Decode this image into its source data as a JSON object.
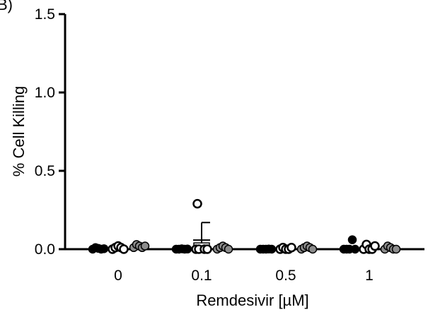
{
  "panel_label": "B)",
  "chart_data": {
    "type": "scatter",
    "title": "",
    "xlabel": "Remdesivir [µM]",
    "ylabel": "% Cell Killing",
    "ylim": [
      0,
      1.5
    ],
    "yticks": [
      "0.0",
      "0.5",
      "1.0",
      "1.5"
    ],
    "categories": [
      "0",
      "0.1",
      "0.5",
      "1"
    ],
    "grid": false,
    "legend": "none",
    "series": [
      {
        "marker": "filled-black",
        "color": "#000000",
        "fill": "#000000",
        "points": [
          [
            0.0,
            0.01,
            0.005,
            0.0,
            0.003
          ],
          [
            0.0,
            0.0,
            0.002,
            0.0,
            0.001
          ],
          [
            0.0,
            0.0,
            0.0,
            0.001,
            0.0
          ],
          [
            0.0,
            0.0,
            0.0,
            0.06,
            0.0
          ]
        ]
      },
      {
        "marker": "open-white",
        "color": "#000000",
        "fill": "#ffffff",
        "points": [
          [
            0.0,
            0.01,
            0.02,
            0.01,
            0.0
          ],
          [
            0.0,
            0.0,
            0.29,
            0.0,
            0.0
          ],
          [
            0.0,
            0.01,
            0.0,
            0.0,
            0.01
          ],
          [
            0.0,
            0.03,
            0.0,
            0.0,
            0.02
          ]
        ],
        "error_bars": [
          null,
          {
            "mean": 0.04,
            "upper": 0.17
          },
          null,
          null
        ]
      },
      {
        "marker": "filled-gray",
        "color": "#000000",
        "fill": "#8c8c8c",
        "points": [
          [
            0.01,
            0.03,
            0.02,
            0.01,
            0.02
          ],
          [
            0.0,
            0.01,
            0.02,
            0.01,
            0.0
          ],
          [
            0.0,
            0.01,
            0.02,
            0.01,
            0.0
          ],
          [
            0.0,
            0.02,
            0.01,
            0.0,
            0.0
          ]
        ]
      }
    ]
  }
}
